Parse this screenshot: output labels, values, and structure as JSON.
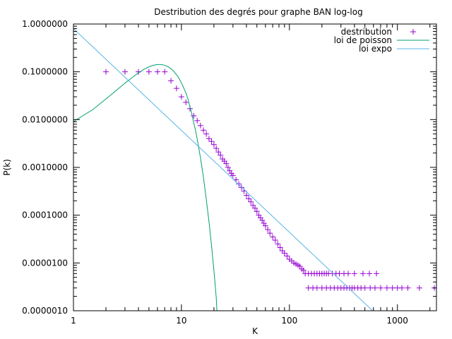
{
  "chart_data": {
    "type": "scatter",
    "title": "Destribution des degrés pour graphe BAN log-log",
    "xlabel": "K",
    "ylabel": "P(k)",
    "x_scale": "log",
    "y_scale": "log",
    "xlim": [
      1,
      2300
    ],
    "ylim": [
      1e-06,
      1
    ],
    "x_ticks": [
      {
        "value": 1,
        "label": "1"
      },
      {
        "value": 10,
        "label": "10"
      },
      {
        "value": 100,
        "label": "100"
      },
      {
        "value": 1000,
        "label": "1000"
      }
    ],
    "y_ticks": [
      {
        "value": 1,
        "label": "1.0000000"
      },
      {
        "value": 0.1,
        "label": "0.1000000"
      },
      {
        "value": 0.01,
        "label": "0.0100000"
      },
      {
        "value": 0.001,
        "label": "0.0010000"
      },
      {
        "value": 0.0001,
        "label": "0.0001000"
      },
      {
        "value": 1e-05,
        "label": "0.0000100"
      },
      {
        "value": 1e-06,
        "label": "0.0000010"
      }
    ],
    "grid": false,
    "legend_position": "top-right",
    "series": [
      {
        "name": "destribution",
        "kind": "points",
        "marker": "plus",
        "color": "#9400d3",
        "x": [
          2,
          3,
          4,
          5,
          6,
          7,
          8,
          9,
          10,
          11,
          12,
          13,
          14,
          15,
          16,
          17,
          18,
          19,
          20,
          21,
          22,
          23,
          24,
          25,
          26,
          27,
          28,
          29,
          30,
          32,
          34,
          36,
          38,
          40,
          42,
          44,
          46,
          48,
          50,
          52,
          54,
          56,
          58,
          60,
          63,
          66,
          70,
          74,
          78,
          82,
          86,
          90,
          95,
          100,
          105,
          110,
          115,
          120,
          125,
          130,
          135,
          140,
          150,
          160,
          170,
          180,
          190,
          200,
          210,
          220,
          230,
          250,
          270,
          290,
          320,
          350,
          400,
          480,
          550,
          640,
          150,
          165,
          180,
          200,
          220,
          240,
          260,
          280,
          300,
          320,
          340,
          360,
          380,
          400,
          430,
          460,
          500,
          560,
          620,
          700,
          800,
          900,
          1000,
          1100,
          1250,
          1600,
          2200
        ],
        "y": [
          0.1,
          0.1,
          0.1,
          0.1,
          0.1,
          0.1,
          0.065,
          0.045,
          0.03,
          0.023,
          0.017,
          0.012,
          0.0095,
          0.0075,
          0.006,
          0.005,
          0.004,
          0.0035,
          0.003,
          0.0025,
          0.0021,
          0.0018,
          0.0015,
          0.00135,
          0.0012,
          0.001,
          0.00085,
          0.00075,
          0.00068,
          0.00055,
          0.00045,
          0.00038,
          0.00032,
          0.00026,
          0.00022,
          0.00019,
          0.00016,
          0.00014,
          0.00012,
          0.0001,
          8.8e-05,
          7.8e-05,
          6.8e-05,
          6e-05,
          5e-05,
          4.2e-05,
          3.5e-05,
          3e-05,
          2.5e-05,
          2.1e-05,
          1.8e-05,
          1.6e-05,
          1.4e-05,
          1.2e-05,
          1.1e-05,
          1e-05,
          9.5e-06,
          9e-06,
          8.5e-06,
          7.5e-06,
          7e-06,
          6e-06,
          6e-06,
          6e-06,
          6e-06,
          6e-06,
          6e-06,
          6e-06,
          6e-06,
          6e-06,
          6e-06,
          6e-06,
          6e-06,
          6e-06,
          6e-06,
          6e-06,
          6e-06,
          6e-06,
          6e-06,
          6e-06,
          3e-06,
          3e-06,
          3e-06,
          3e-06,
          3e-06,
          3e-06,
          3e-06,
          3e-06,
          3e-06,
          3e-06,
          3e-06,
          3e-06,
          3e-06,
          3e-06,
          3e-06,
          3e-06,
          3e-06,
          3e-06,
          3e-06,
          3e-06,
          3e-06,
          3e-06,
          3e-06,
          3e-06,
          3e-06,
          3e-06,
          3e-06
        ]
      },
      {
        "name": "loi de poisson",
        "kind": "line",
        "color": "#009e73",
        "x": [
          1,
          1.5,
          2,
          2.5,
          3,
          3.5,
          4,
          4.5,
          5,
          5.5,
          6,
          6.5,
          7,
          7.5,
          8,
          8.5,
          9,
          9.5,
          10,
          10.5,
          11,
          11.5,
          12,
          12.5,
          13,
          13.5,
          14,
          15,
          16,
          17,
          18,
          19,
          20,
          21,
          21.3
        ],
        "y": [
          0.0091,
          0.016,
          0.027,
          0.041,
          0.058,
          0.076,
          0.095,
          0.113,
          0.127,
          0.137,
          0.142,
          0.142,
          0.137,
          0.128,
          0.116,
          0.102,
          0.087,
          0.073,
          0.058,
          0.046,
          0.036,
          0.027,
          0.018,
          0.013,
          0.0085,
          0.006,
          0.0039,
          0.0016,
          0.00061,
          0.00021,
          7.3e-05,
          2.3e-05,
          6.9e-06,
          1.9e-06,
          1e-06
        ]
      },
      {
        "name": "loi expo",
        "kind": "line",
        "color": "#56b4e9",
        "x": [
          1,
          590
        ],
        "y": [
          0.8,
          1e-06
        ]
      }
    ]
  }
}
